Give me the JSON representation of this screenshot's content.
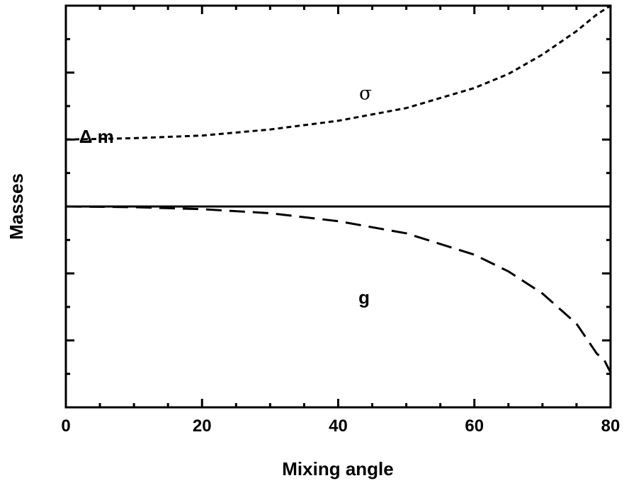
{
  "chart_data": {
    "type": "line",
    "xlabel": "Mixing angle",
    "ylabel": "Masses",
    "xlim": [
      0,
      80
    ],
    "ylim": [
      -3,
      3
    ],
    "x_ticks": [
      0,
      20,
      40,
      60,
      80
    ],
    "x_tick_labels": [
      "0",
      "20",
      "40",
      "60",
      "80"
    ],
    "y_tick_labels_shown": false,
    "grid": false,
    "legend": "none",
    "series": [
      {
        "style": "dotted",
        "x": [
          0,
          10,
          20,
          30,
          40,
          50,
          60,
          65,
          70,
          75,
          78,
          80
        ],
        "y": [
          1.0,
          1.02,
          1.06,
          1.15,
          1.28,
          1.47,
          1.77,
          1.98,
          2.27,
          2.62,
          2.87,
          3.0
        ]
      },
      {
        "style": "solid",
        "x": [
          0,
          80
        ],
        "y": [
          0,
          0
        ]
      },
      {
        "style": "dashed",
        "x": [
          0,
          10,
          20,
          30,
          40,
          50,
          60,
          65,
          70,
          75,
          78,
          79,
          80
        ],
        "y": [
          0,
          -0.01,
          -0.04,
          -0.1,
          -0.22,
          -0.4,
          -0.72,
          -0.97,
          -1.3,
          -1.75,
          -2.2,
          -2.28,
          -2.48
        ]
      }
    ],
    "annotations": [
      {
        "text": "σ",
        "x": 44,
        "y": 1.6
      },
      {
        "text": "Δ m",
        "x": 4.5,
        "y": 0.95
      },
      {
        "text": "g",
        "x": 43.8,
        "y": -1.45
      }
    ]
  }
}
